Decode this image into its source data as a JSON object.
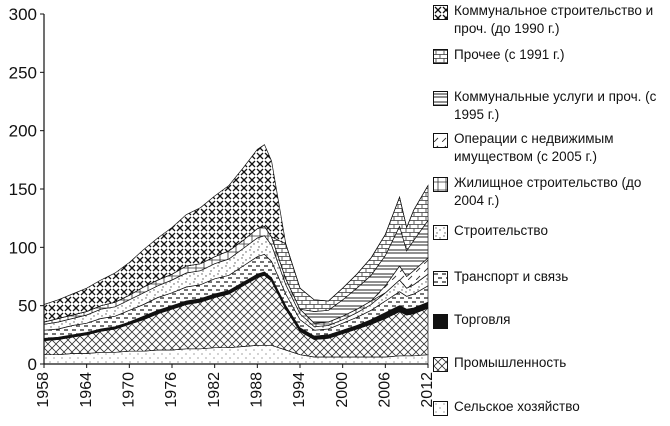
{
  "chart_data": {
    "type": "area",
    "stacked": true,
    "title": "",
    "xlabel": "",
    "ylabel": "",
    "ylim": [
      0,
      300
    ],
    "yticks": [
      0,
      50,
      100,
      150,
      200,
      250,
      300
    ],
    "xticks": [
      1958,
      1964,
      1970,
      1976,
      1982,
      1988,
      1994,
      2000,
      2006,
      2012
    ],
    "xlim": [
      1958,
      2012
    ],
    "grid": false,
    "legend_position": "right",
    "x": [
      1958,
      1960,
      1962,
      1964,
      1966,
      1968,
      1970,
      1972,
      1974,
      1976,
      1978,
      1980,
      1982,
      1984,
      1986,
      1988,
      1989,
      1990,
      1992,
      1994,
      1996,
      1998,
      2000,
      2002,
      2004,
      2006,
      2008,
      2009,
      2010,
      2012
    ],
    "series": [
      {
        "name": "Сельское хозяйство",
        "pattern": "dots-sparse",
        "values": [
          8,
          8,
          9,
          9,
          10,
          10,
          11,
          11,
          12,
          12,
          13,
          13,
          14,
          14,
          15,
          16,
          16,
          16,
          12,
          8,
          6,
          6,
          6,
          6,
          6,
          6,
          7,
          7,
          7,
          8
        ]
      },
      {
        "name": "Промышленность",
        "pattern": "crosshatch",
        "values": [
          12,
          13,
          14,
          16,
          18,
          20,
          23,
          27,
          31,
          35,
          38,
          40,
          43,
          46,
          52,
          58,
          60,
          55,
          35,
          20,
          15,
          16,
          20,
          24,
          28,
          33,
          38,
          35,
          36,
          40
        ]
      },
      {
        "name": "Торговля",
        "pattern": "solid",
        "values": [
          2,
          2,
          2,
          2,
          2,
          2,
          2,
          3,
          3,
          3,
          3,
          3,
          3,
          3,
          3,
          3,
          3,
          3,
          3,
          3,
          3,
          3,
          3,
          3,
          4,
          5,
          5,
          5,
          5,
          5
        ]
      },
      {
        "name": "Транспорт и связь",
        "pattern": "dashes",
        "values": [
          7,
          7,
          8,
          8,
          9,
          9,
          10,
          10,
          11,
          11,
          12,
          12,
          13,
          13,
          14,
          15,
          15,
          14,
          10,
          7,
          5,
          5,
          6,
          7,
          8,
          10,
          12,
          11,
          12,
          14
        ]
      },
      {
        "name": "Строительство",
        "pattern": "dots-dense",
        "values": [
          5,
          6,
          6,
          7,
          8,
          8,
          9,
          10,
          10,
          11,
          12,
          12,
          13,
          14,
          15,
          16,
          16,
          14,
          8,
          5,
          3,
          3,
          3,
          4,
          5,
          7,
          10,
          7,
          8,
          10
        ]
      },
      {
        "name": "Жилищное строительство (до 2004 г.)",
        "pattern": "grid",
        "values": [
          2,
          3,
          3,
          3,
          3,
          4,
          4,
          5,
          5,
          5,
          6,
          6,
          6,
          7,
          7,
          8,
          8,
          7,
          5,
          4,
          3,
          3,
          3,
          3,
          3,
          0,
          0,
          0,
          0,
          0
        ]
      },
      {
        "name": "Операции с недвижимым имуществом (с 2005 г.)",
        "pattern": "diag-dash",
        "values": [
          0,
          0,
          0,
          0,
          0,
          0,
          0,
          0,
          0,
          0,
          0,
          0,
          0,
          0,
          0,
          0,
          0,
          0,
          0,
          0,
          0,
          0,
          0,
          0,
          0,
          6,
          12,
          10,
          12,
          14
        ]
      },
      {
        "name": "Коммунальные услуги и проч. (с 1995 г.)",
        "pattern": "horizontal",
        "values": [
          0,
          0,
          0,
          0,
          0,
          0,
          0,
          0,
          0,
          0,
          0,
          0,
          0,
          0,
          0,
          0,
          0,
          0,
          0,
          0,
          10,
          10,
          14,
          18,
          22,
          26,
          34,
          22,
          26,
          32
        ]
      },
      {
        "name": "Прочее (с 1991 г.)",
        "pattern": "brick",
        "values": [
          0,
          0,
          0,
          0,
          0,
          0,
          0,
          0,
          0,
          0,
          0,
          0,
          0,
          0,
          0,
          0,
          0,
          0,
          30,
          18,
          10,
          8,
          10,
          12,
          15,
          18,
          25,
          20,
          26,
          30
        ]
      },
      {
        "name": "Коммунальное строительство и проч. (до 1990 г.)",
        "pattern": "xcross",
        "values": [
          15,
          16,
          18,
          20,
          22,
          25,
          28,
          32,
          36,
          40,
          44,
          48,
          52,
          56,
          62,
          68,
          70,
          65,
          0,
          0,
          0,
          0,
          0,
          0,
          0,
          0,
          0,
          0,
          0,
          0
        ]
      }
    ]
  }
}
